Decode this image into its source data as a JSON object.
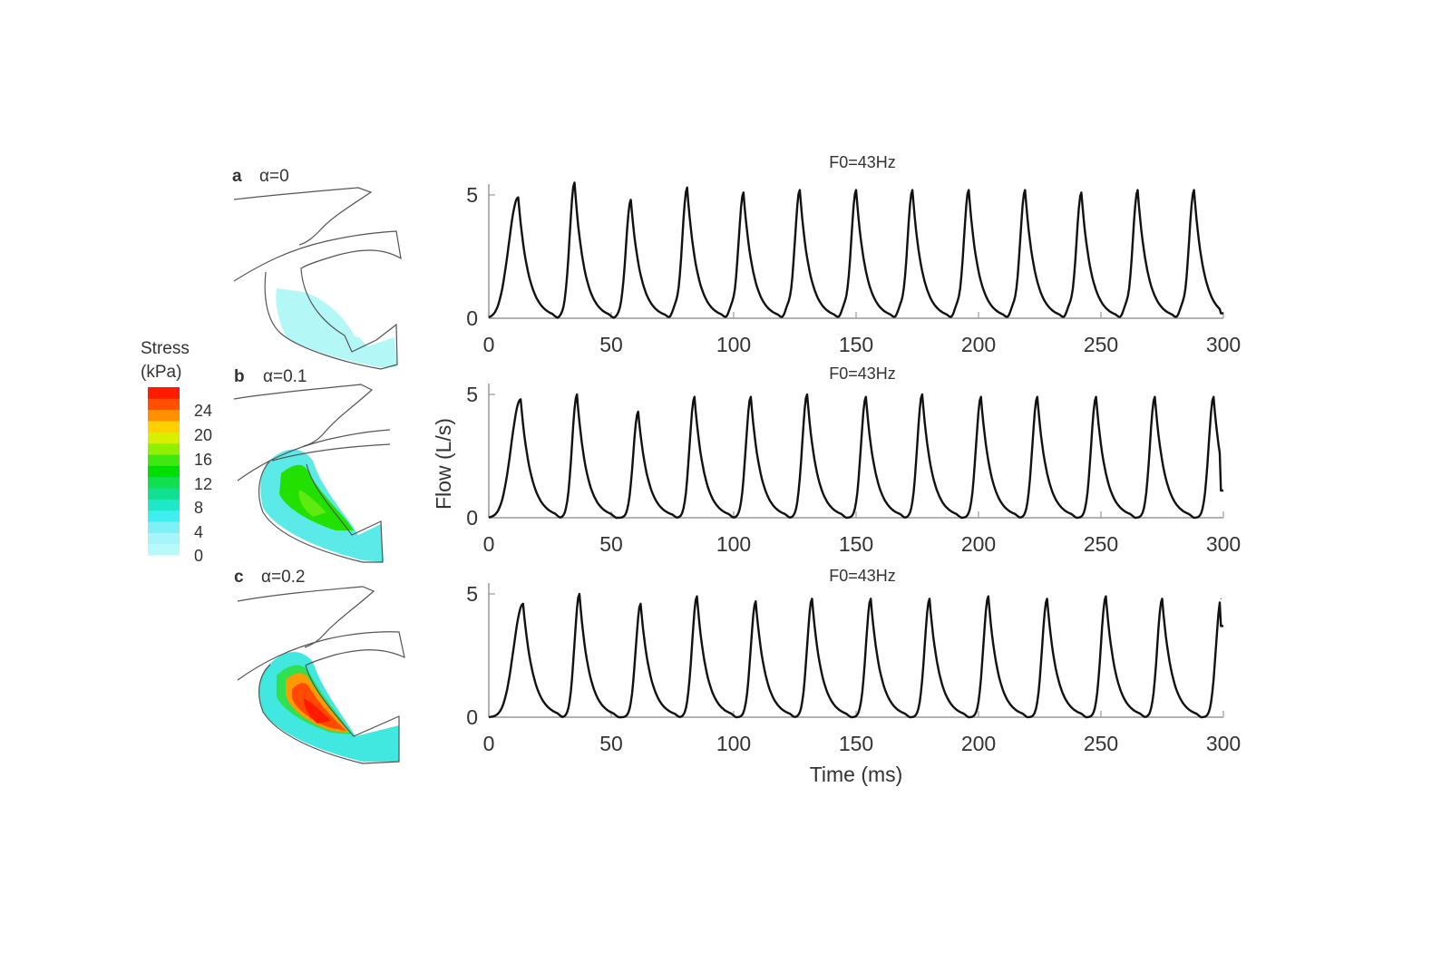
{
  "figure": {
    "colorbar": {
      "title_line1": "Stress",
      "title_line2": "(kPa)",
      "ticks": [
        "24",
        "20",
        "16",
        "12",
        "8",
        "4",
        "0"
      ],
      "tick_values": [
        24,
        20,
        16,
        12,
        8,
        4,
        0
      ],
      "range": [
        0,
        28
      ],
      "colors": [
        "#b8fafa",
        "#a6f5fa",
        "#7ff0f5",
        "#40eef0",
        "#1ee8c8",
        "#10e090",
        "#10e050",
        "#00e000",
        "#40e810",
        "#90f000",
        "#d8f000",
        "#ffd000",
        "#ff9000",
        "#ff5000",
        "#ff1a00"
      ]
    },
    "panels": [
      {
        "letter": "a",
        "alpha_label": "α=0",
        "max_stress_color": "#b3f7f7"
      },
      {
        "letter": "b",
        "alpha_label": "α=0.1",
        "max_stress_color": "#22e000"
      },
      {
        "letter": "c",
        "alpha_label": "α=0.2",
        "max_stress_color": "#ff2a00"
      }
    ]
  },
  "chart_data": [
    {
      "type": "line",
      "title": "F0=43Hz",
      "xlabel": "",
      "ylabel": "",
      "xlim": [
        0,
        300
      ],
      "ylim": [
        0,
        5.5
      ],
      "xticks": [
        "0",
        "50",
        "100",
        "150",
        "200",
        "250",
        "300"
      ],
      "yticks": [
        "0",
        "5"
      ],
      "series": [
        {
          "name": "flow",
          "peak_times": [
            12,
            35,
            58,
            81,
            104,
            127,
            150,
            173,
            196,
            219,
            242,
            265,
            288
          ],
          "peak_values": [
            4.9,
            5.5,
            4.8,
            5.3,
            5.1,
            5.2,
            5.2,
            5.2,
            5.2,
            5.2,
            5.1,
            5.2,
            5.2
          ],
          "end_value": 0.2
        }
      ]
    },
    {
      "type": "line",
      "title": "F0=43Hz",
      "xlabel": "",
      "ylabel": "Flow (L/s)",
      "xlim": [
        0,
        300
      ],
      "ylim": [
        0,
        5.5
      ],
      "xticks": [
        "0",
        "50",
        "100",
        "150",
        "200",
        "250",
        "300"
      ],
      "yticks": [
        "0",
        "5"
      ],
      "series": [
        {
          "name": "flow",
          "peak_times": [
            13,
            36,
            61,
            84,
            107,
            130,
            154,
            177,
            201,
            224,
            248,
            272,
            296
          ],
          "peak_values": [
            4.8,
            5.0,
            4.3,
            4.9,
            4.9,
            5.0,
            4.9,
            5.0,
            4.9,
            4.9,
            4.9,
            4.9,
            4.9
          ],
          "end_value": 1.1
        }
      ]
    },
    {
      "type": "line",
      "title": "F0=43Hz",
      "xlabel": "Time (ms)",
      "ylabel": "",
      "xlim": [
        0,
        300
      ],
      "ylim": [
        0,
        5.5
      ],
      "xticks": [
        "0",
        "50",
        "100",
        "150",
        "200",
        "250",
        "300"
      ],
      "yticks": [
        "0",
        "5"
      ],
      "series": [
        {
          "name": "flow",
          "peak_times": [
            14,
            37,
            62,
            85,
            109,
            132,
            156,
            180,
            204,
            228,
            252,
            275,
            299
          ],
          "peak_values": [
            4.6,
            5.0,
            4.6,
            4.9,
            4.7,
            4.8,
            4.8,
            4.8,
            4.9,
            4.8,
            4.9,
            4.8,
            4.8
          ],
          "end_value": 3.7
        }
      ]
    }
  ]
}
